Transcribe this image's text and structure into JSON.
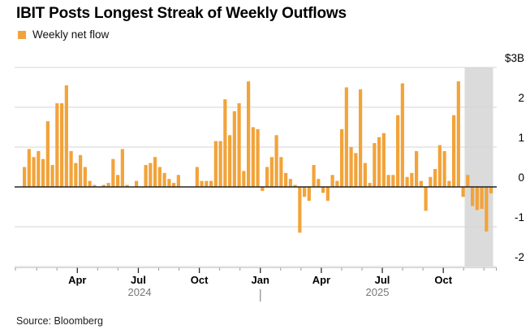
{
  "title": "IBIT Posts Longest Streak of Weekly Outflows",
  "legend": {
    "label": "Weekly net flow",
    "swatch_color": "#F2A33A"
  },
  "source": "Source: Bloomberg",
  "chart_data": {
    "type": "bar",
    "title": "IBIT Posts Longest Streak of Weekly Outflows",
    "series": [
      {
        "name": "Weekly net flow",
        "unit": "USD billions",
        "color": "#F2A33A",
        "values": [
          0.5,
          0.95,
          0.75,
          0.9,
          0.7,
          1.65,
          0.55,
          2.1,
          2.1,
          2.55,
          0.9,
          0.6,
          0.8,
          0.5,
          0.15,
          0.05,
          0,
          0.05,
          0.1,
          0.7,
          0.3,
          0.95,
          0.05,
          0,
          0.15,
          0,
          0.55,
          0.6,
          0.75,
          0.5,
          0.35,
          0.2,
          0.1,
          0.3,
          0,
          0,
          0,
          0.5,
          0.15,
          0.15,
          0.15,
          1.15,
          1.15,
          2.2,
          1.3,
          1.9,
          2.1,
          0.4,
          2.65,
          1.5,
          1.45,
          -0.1,
          0.5,
          0.75,
          1.3,
          0.75,
          0.35,
          0.2,
          0.05,
          -1.15,
          -0.25,
          -0.35,
          0.55,
          0.2,
          -0.15,
          -0.35,
          0.3,
          0.15,
          1.45,
          2.5,
          1.0,
          0.85,
          2.45,
          0.6,
          0.1,
          1.1,
          1.25,
          1.35,
          0.3,
          0.3,
          1.8,
          2.6,
          0.25,
          0.35,
          0.9,
          0.15,
          -0.6,
          0.25,
          0.45,
          1.05,
          0.9,
          0.15,
          1.8,
          2.65,
          -0.25,
          0.3,
          -0.48,
          -0.58,
          -0.55,
          -1.12,
          -0.16
        ]
      }
    ],
    "frequency": "weekly",
    "ylim": [
      -2,
      3
    ],
    "y_ticks": [
      {
        "value": 3,
        "label": "$3B"
      },
      {
        "value": 2,
        "label": "2"
      },
      {
        "value": 1,
        "label": "1"
      },
      {
        "value": 0,
        "label": "0"
      },
      {
        "value": -1,
        "label": "-1"
      },
      {
        "value": -2,
        "label": "-2"
      }
    ],
    "x_axis": {
      "month_labels": [
        {
          "label": "Apr",
          "month_index": 2
        },
        {
          "label": "Jul",
          "month_index": 5
        },
        {
          "label": "Oct",
          "month_index": 8
        },
        {
          "label": "Jan",
          "month_index": 11
        },
        {
          "label": "Apr",
          "month_index": 14
        },
        {
          "label": "Jul",
          "month_index": 17
        },
        {
          "label": "Oct",
          "month_index": 20
        }
      ],
      "n_month_ticks": 23,
      "year_labels": [
        {
          "label": "2024"
        },
        {
          "label": "2025"
        }
      ],
      "year_separator": "|"
    },
    "highlight": {
      "start_index": 95,
      "color": "#DBDBDB"
    },
    "grid": true,
    "zero_line": true,
    "legend_position": "top-left"
  }
}
